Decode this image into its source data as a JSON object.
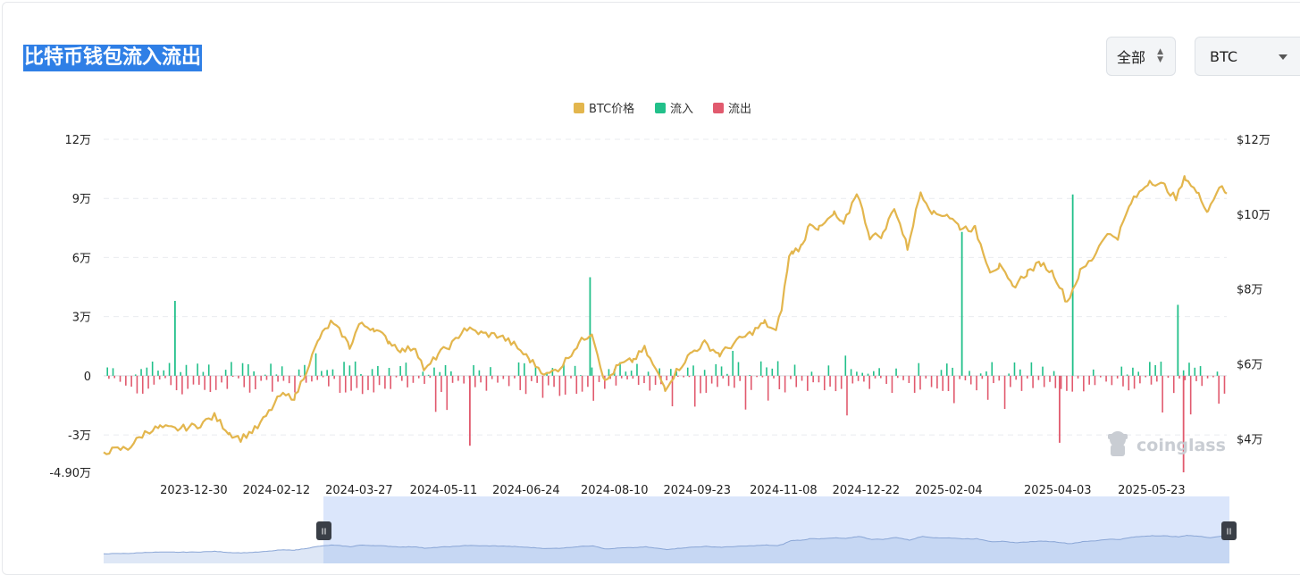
{
  "page": {
    "title": "比特币钱包流入流出",
    "range_select": {
      "value": "全部"
    },
    "coin_select": {
      "value": "BTC"
    },
    "watermark": "coinglass"
  },
  "colors": {
    "price": "#e3b64d",
    "inflow": "#22c08a",
    "outflow": "#e15a6e",
    "grid": "#e9ebef",
    "title_bg": "#2f7fe6",
    "navigator_fill": "#dbe6fb"
  },
  "chart_data": {
    "type": "bar",
    "title": "",
    "legend": {
      "placement": "top-center",
      "items": [
        {
          "label": "BTC价格",
          "color": "#e3b64d"
        },
        {
          "label": "流入",
          "color": "#22c08a"
        },
        {
          "label": "流出",
          "color": "#e15a6e"
        }
      ]
    },
    "grid": true,
    "y_left": {
      "ticks": [
        {
          "value": 120000,
          "label": "12万"
        },
        {
          "value": 90000,
          "label": "9万"
        },
        {
          "value": 60000,
          "label": "6万"
        },
        {
          "value": 30000,
          "label": "3万"
        },
        {
          "value": 0,
          "label": "0"
        },
        {
          "value": -30000,
          "label": "-3万"
        },
        {
          "value": -49000,
          "label": "-4.90万"
        }
      ],
      "range": [
        -49000,
        120000
      ]
    },
    "y_right": {
      "ticks": [
        {
          "value": 120000,
          "label": "$12万"
        },
        {
          "value": 100000,
          "label": "$10万"
        },
        {
          "value": 80000,
          "label": "$8万"
        },
        {
          "value": 60000,
          "label": "$6万"
        },
        {
          "value": 40000,
          "label": "$4万"
        }
      ],
      "range": [
        31000,
        120000
      ]
    },
    "x_range": [
      "2023-11-12",
      "2025-07-02"
    ],
    "x_ticks": [
      "2023-12-30",
      "2024-02-12",
      "2024-03-27",
      "2024-05-11",
      "2024-06-24",
      "2024-08-10",
      "2024-09-23",
      "2024-11-08",
      "2024-12-22",
      "2025-02-04",
      "2025-04-03",
      "2025-05-23"
    ],
    "price": {
      "name": "BTC价格",
      "x": [
        "2023-11-12",
        "2023-11-25",
        "2023-12-05",
        "2023-12-12",
        "2023-12-20",
        "2024-01-01",
        "2024-01-10",
        "2024-01-18",
        "2024-01-24",
        "2024-02-02",
        "2024-02-08",
        "2024-02-14",
        "2024-02-22",
        "2024-03-02",
        "2024-03-06",
        "2024-03-12",
        "2024-03-18",
        "2024-03-22",
        "2024-03-27",
        "2024-04-04",
        "2024-04-12",
        "2024-04-19",
        "2024-04-26",
        "2024-05-01",
        "2024-05-08",
        "2024-05-16",
        "2024-05-22",
        "2024-06-01",
        "2024-06-10",
        "2024-06-18",
        "2024-06-26",
        "2024-07-05",
        "2024-07-12",
        "2024-07-22",
        "2024-07-29",
        "2024-08-05",
        "2024-08-12",
        "2024-08-20",
        "2024-08-26",
        "2024-09-06",
        "2024-09-12",
        "2024-09-20",
        "2024-09-27",
        "2024-10-05",
        "2024-10-14",
        "2024-10-21",
        "2024-10-29",
        "2024-11-04",
        "2024-11-07",
        "2024-11-11",
        "2024-11-13",
        "2024-11-18",
        "2024-11-22",
        "2024-11-27",
        "2024-12-05",
        "2024-12-10",
        "2024-12-17",
        "2024-12-24",
        "2024-12-31",
        "2025-01-06",
        "2025-01-13",
        "2025-01-20",
        "2025-01-27",
        "2025-02-03",
        "2025-02-10",
        "2025-02-18",
        "2025-02-26",
        "2025-03-03",
        "2025-03-10",
        "2025-03-18",
        "2025-03-25",
        "2025-04-01",
        "2025-04-08",
        "2025-04-15",
        "2025-04-22",
        "2025-04-28",
        "2025-05-05",
        "2025-05-12",
        "2025-05-22",
        "2025-05-30",
        "2025-06-05",
        "2025-06-10",
        "2025-06-17",
        "2025-06-22",
        "2025-06-28",
        "2025-07-02"
      ],
      "values": [
        36500,
        37500,
        42000,
        43000,
        42500,
        43500,
        46000,
        41500,
        40000,
        43000,
        47000,
        51500,
        51200,
        62000,
        67000,
        71000,
        68000,
        64500,
        70500,
        69500,
        66000,
        63500,
        64500,
        58000,
        62500,
        65500,
        69500,
        68000,
        67500,
        65000,
        61000,
        57000,
        59000,
        65500,
        68500,
        55000,
        59500,
        61000,
        64000,
        53500,
        58000,
        63000,
        65500,
        62500,
        66000,
        68000,
        71000,
        68500,
        75000,
        88500,
        90000,
        91500,
        98000,
        96000,
        100000,
        97000,
        106000,
        94000,
        94500,
        102000,
        91000,
        106000,
        100000,
        100000,
        96500,
        96000,
        85000,
        86000,
        80500,
        84500,
        87000,
        84000,
        76500,
        84500,
        88500,
        94500,
        94000,
        103000,
        109000,
        107500,
        104000,
        110000,
        105000,
        101000,
        107500,
        105500
      ]
    },
    "inflow": {
      "name": "流入",
      "highlights": [
        {
          "x": "2023-12-20",
          "value": 38000
        },
        {
          "x": "2024-07-28",
          "value": 50000
        },
        {
          "x": "2025-02-11",
          "value": 73000
        },
        {
          "x": "2025-04-11",
          "value": 92000
        },
        {
          "x": "2025-06-06",
          "value": 36000
        }
      ]
    },
    "outflow": {
      "name": "流出",
      "highlights": [
        {
          "x": "2024-05-25",
          "value": -35500
        },
        {
          "x": "2025-04-04",
          "value": -34000
        },
        {
          "x": "2025-06-09",
          "value": -49000
        }
      ]
    }
  }
}
